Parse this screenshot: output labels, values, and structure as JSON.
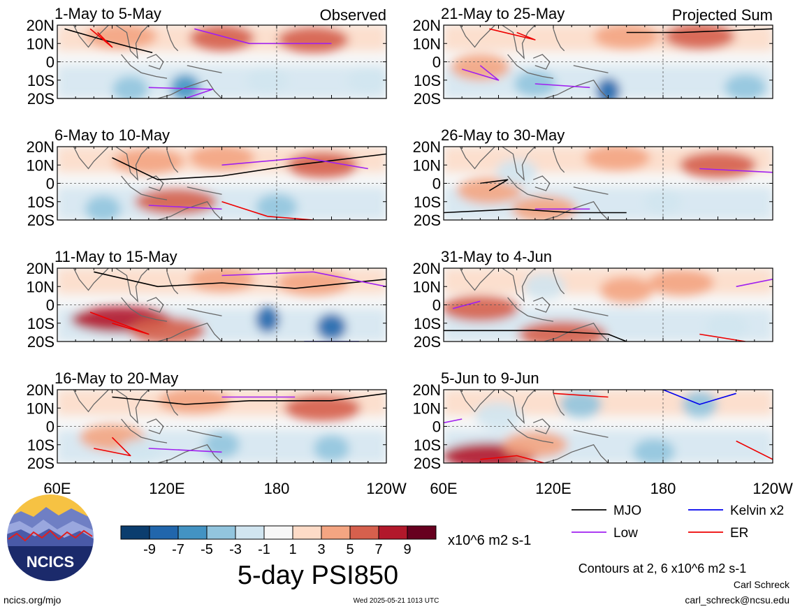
{
  "figure": {
    "title": "5-day PSI850",
    "units": "x10^6 m2 s-1",
    "contour_note": "Contours at 2, 6 x10^6 m2 s-1",
    "author": "Carl Schreck",
    "email": "carl_schreck@ncsu.edu",
    "website": "ncics.org/mjo",
    "timestamp": "Wed 2025-05-21 1013 UTC",
    "logo_text": "NCICS",
    "column_labels": {
      "left": "Observed",
      "right": "Projected Sum"
    }
  },
  "colorbar": {
    "colors": [
      "#0b3d6e",
      "#2166ac",
      "#4393c3",
      "#92c5de",
      "#d1e5f0",
      "#f7f7f7",
      "#fddbc7",
      "#f4a582",
      "#d6604d",
      "#b2182b",
      "#67001f"
    ],
    "tick_labels": [
      "-9",
      "-7",
      "-5",
      "-3",
      "-1",
      "1",
      "3",
      "5",
      "7",
      "9"
    ]
  },
  "legend": [
    {
      "label": "MJO",
      "color": "#000000"
    },
    {
      "label": "Kelvin x2",
      "color": "#0000ee"
    },
    {
      "label": "Low",
      "color": "#a020f0"
    },
    {
      "label": "ER",
      "color": "#ee0000"
    }
  ],
  "chart_data": {
    "type": "heatmap",
    "variable": "5-day PSI850",
    "units": "x10^6 m2 s-1",
    "contour_levels": [
      2,
      6
    ],
    "x_tick_labels": [
      "60E",
      "120E",
      "180",
      "120W"
    ],
    "y_tick_labels": [
      "20N",
      "10N",
      "0",
      "10S",
      "20S"
    ],
    "xlim": [
      60,
      240
    ],
    "ylim": [
      -20,
      20
    ],
    "panels": [
      {
        "period": "1-May to 5-May",
        "source": "Observed"
      },
      {
        "period": "6-May to 10-May",
        "source": "Observed"
      },
      {
        "period": "11-May to 15-May",
        "source": "Observed"
      },
      {
        "period": "16-May to 20-May",
        "source": "Observed"
      },
      {
        "period": "21-May to 25-May",
        "source": "Projected Sum"
      },
      {
        "period": "26-May to 30-May",
        "source": "Projected Sum"
      },
      {
        "period": "31-May to 4-Jun",
        "source": "Projected Sum"
      },
      {
        "period": "5-Jun to 9-Jun",
        "source": "Projected Sum"
      }
    ]
  }
}
